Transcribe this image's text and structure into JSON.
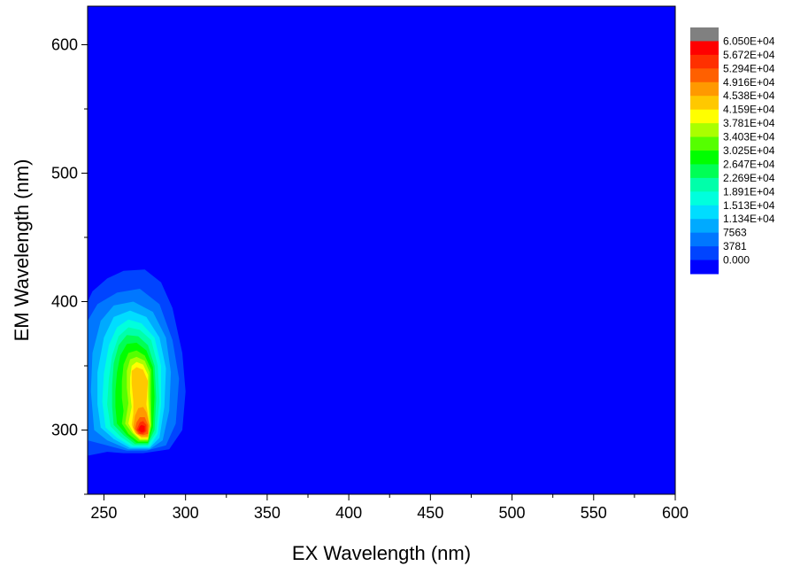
{
  "chart_data": {
    "type": "heatmap",
    "subtype": "filled-contour",
    "title": "",
    "xlabel": "EX Wavelength (nm)",
    "ylabel": "EM Wavelength (nm)",
    "xlim": [
      240,
      600
    ],
    "ylim": [
      250,
      630
    ],
    "x_ticks": [
      "250",
      "300",
      "350",
      "400",
      "450",
      "500",
      "550",
      "600"
    ],
    "y_ticks": [
      "300",
      "400",
      "500",
      "600"
    ],
    "grid": false,
    "background_color": "#0000ff",
    "legend_position": "right",
    "colorbar": {
      "levels": [
        "6.050E+04",
        "5.672E+04",
        "5.294E+04",
        "4.916E+04",
        "4.538E+04",
        "4.159E+04",
        "3.781E+04",
        "3.403E+04",
        "3.025E+04",
        "2.647E+04",
        "2.269E+04",
        "1.891E+04",
        "1.513E+04",
        "1.134E+04",
        "7563",
        "3781",
        "0.000"
      ],
      "colors": [
        "#808080",
        "#ff0000",
        "#ff3000",
        "#ff6000",
        "#ff9900",
        "#ffc800",
        "#ffff00",
        "#aaff00",
        "#55ff00",
        "#00ff00",
        "#00ff55",
        "#00ffaa",
        "#00ffdd",
        "#00ddff",
        "#00aaff",
        "#0077ff",
        "#0044ff",
        "#0000ff"
      ]
    },
    "peaks": [
      {
        "ex": 275,
        "em": 300,
        "value": 58000
      },
      {
        "ex": 273,
        "em": 345,
        "value": 47000
      }
    ],
    "contours": [
      {
        "level": "3781",
        "color": "#0044ff",
        "points": [
          [
            240,
            280
          ],
          [
            252,
            283
          ],
          [
            262,
            282
          ],
          [
            274,
            282
          ],
          [
            290,
            285
          ],
          [
            298,
            300
          ],
          [
            300,
            330
          ],
          [
            298,
            360
          ],
          [
            292,
            395
          ],
          [
            285,
            415
          ],
          [
            275,
            425
          ],
          [
            262,
            424
          ],
          [
            252,
            418
          ],
          [
            243,
            408
          ],
          [
            240,
            400
          ]
        ]
      },
      {
        "level": "7563",
        "color": "#0077ff",
        "points": [
          [
            240,
            292
          ],
          [
            252,
            288
          ],
          [
            264,
            284
          ],
          [
            276,
            284
          ],
          [
            288,
            288
          ],
          [
            294,
            305
          ],
          [
            296,
            340
          ],
          [
            292,
            370
          ],
          [
            284,
            398
          ],
          [
            272,
            410
          ],
          [
            258,
            407
          ],
          [
            246,
            398
          ],
          [
            240,
            385
          ]
        ]
      },
      {
        "level": "1.134E+04",
        "color": "#00aaff",
        "points": [
          [
            244,
            300
          ],
          [
            252,
            292
          ],
          [
            265,
            285
          ],
          [
            278,
            285
          ],
          [
            286,
            292
          ],
          [
            290,
            315
          ],
          [
            291,
            345
          ],
          [
            288,
            372
          ],
          [
            280,
            392
          ],
          [
            268,
            400
          ],
          [
            256,
            397
          ],
          [
            248,
            385
          ],
          [
            243,
            360
          ],
          [
            242,
            330
          ]
        ]
      },
      {
        "level": "1.513E+04",
        "color": "#00ddff",
        "points": [
          [
            248,
            302
          ],
          [
            256,
            293
          ],
          [
            266,
            286
          ],
          [
            278,
            286
          ],
          [
            284,
            294
          ],
          [
            287,
            318
          ],
          [
            288,
            348
          ],
          [
            284,
            372
          ],
          [
            276,
            388
          ],
          [
            266,
            393
          ],
          [
            256,
            388
          ],
          [
            250,
            372
          ],
          [
            246,
            345
          ],
          [
            246,
            320
          ]
        ]
      },
      {
        "level": "1.891E+04",
        "color": "#00ffdd",
        "points": [
          [
            251,
            302
          ],
          [
            258,
            294
          ],
          [
            267,
            287
          ],
          [
            278,
            287
          ],
          [
            283,
            297
          ],
          [
            285,
            320
          ],
          [
            285,
            350
          ],
          [
            281,
            372
          ],
          [
            273,
            383
          ],
          [
            265,
            386
          ],
          [
            258,
            380
          ],
          [
            253,
            366
          ],
          [
            250,
            344
          ],
          [
            249,
            322
          ]
        ]
      },
      {
        "level": "2.269E+04",
        "color": "#00ffaa",
        "points": [
          [
            254,
            303
          ],
          [
            260,
            295
          ],
          [
            268,
            288
          ],
          [
            277,
            288
          ],
          [
            282,
            298
          ],
          [
            284,
            322
          ],
          [
            283,
            350
          ],
          [
            279,
            370
          ],
          [
            272,
            378
          ],
          [
            265,
            380
          ],
          [
            259,
            373
          ],
          [
            255,
            358
          ],
          [
            253,
            340
          ],
          [
            252,
            320
          ]
        ]
      },
      {
        "level": "2.647E+04",
        "color": "#00ff55",
        "points": [
          [
            256,
            304
          ],
          [
            262,
            296
          ],
          [
            269,
            289
          ],
          [
            277,
            289
          ],
          [
            281,
            300
          ],
          [
            282,
            325
          ],
          [
            281,
            350
          ],
          [
            277,
            366
          ],
          [
            271,
            373
          ],
          [
            264,
            374
          ],
          [
            259,
            366
          ],
          [
            256,
            352
          ],
          [
            255,
            335
          ],
          [
            255,
            318
          ]
        ]
      },
      {
        "level": "3.025E+04",
        "color": "#00ff00",
        "points": [
          [
            258,
            305
          ],
          [
            264,
            296
          ],
          [
            270,
            290
          ],
          [
            277,
            290
          ],
          [
            280,
            302
          ],
          [
            281,
            326
          ],
          [
            280,
            349
          ],
          [
            276,
            362
          ],
          [
            270,
            368
          ],
          [
            264,
            367
          ],
          [
            260,
            358
          ],
          [
            258,
            345
          ],
          [
            257,
            330
          ],
          [
            257,
            318
          ]
        ]
      },
      {
        "level": "3.403E+04",
        "color": "#55ff00",
        "points": [
          [
            261,
            305
          ],
          [
            265,
            297
          ],
          [
            271,
            291
          ],
          [
            277,
            291
          ],
          [
            279,
            303
          ],
          [
            279,
            326
          ],
          [
            279,
            347
          ],
          [
            275,
            358
          ],
          [
            270,
            362
          ],
          [
            265,
            360
          ],
          [
            262,
            351
          ],
          [
            261,
            338
          ],
          [
            261,
            325
          ],
          [
            262,
            315
          ]
        ]
      },
      {
        "level": "3.781E+04",
        "color": "#aaff00",
        "points": [
          [
            263,
            305
          ],
          [
            267,
            298
          ],
          [
            272,
            292
          ],
          [
            277,
            292
          ],
          [
            279,
            304
          ],
          [
            278,
            326
          ],
          [
            278,
            345
          ],
          [
            275,
            354
          ],
          [
            270,
            357
          ],
          [
            266,
            355
          ],
          [
            264,
            346
          ],
          [
            264,
            333
          ],
          [
            265,
            321
          ]
        ]
      },
      {
        "level": "4.159E+04",
        "color": "#ffff00",
        "points": [
          [
            265,
            305
          ],
          [
            268,
            298
          ],
          [
            272,
            293
          ],
          [
            277,
            293
          ],
          [
            278,
            305
          ],
          [
            277,
            326
          ],
          [
            277,
            343
          ],
          [
            274,
            351
          ],
          [
            270,
            353
          ],
          [
            267,
            350
          ],
          [
            266,
            341
          ],
          [
            266,
            329
          ],
          [
            267,
            318
          ]
        ]
      },
      {
        "level": "4.538E+04",
        "color": "#ffc800",
        "points": [
          [
            267,
            304
          ],
          [
            269,
            298
          ],
          [
            273,
            294
          ],
          [
            277,
            294
          ],
          [
            278,
            304
          ],
          [
            276,
            320
          ],
          [
            277,
            338
          ],
          [
            274,
            347
          ],
          [
            270,
            349
          ],
          [
            267,
            346
          ],
          [
            267,
            336
          ],
          [
            268,
            322
          ],
          [
            268,
            313
          ]
        ]
      },
      {
        "level": "4.916E+04",
        "color": "#ff9900",
        "points": [
          [
            268,
            302
          ],
          [
            270,
            297
          ],
          [
            273,
            295
          ],
          [
            277,
            295
          ],
          [
            278,
            303
          ],
          [
            276,
            314
          ],
          [
            274,
            318
          ],
          [
            271,
            317
          ],
          [
            269,
            311
          ]
        ]
      },
      {
        "level": "5.294E+04",
        "color": "#ff6000",
        "points": [
          [
            269,
            301
          ],
          [
            271,
            297
          ],
          [
            274,
            296
          ],
          [
            277,
            297
          ],
          [
            277,
            304
          ],
          [
            275,
            310
          ],
          [
            272,
            310
          ],
          [
            270,
            306
          ]
        ]
      },
      {
        "level": "5.672E+04",
        "color": "#ff3000",
        "points": [
          [
            270,
            300
          ],
          [
            272,
            297
          ],
          [
            274,
            297
          ],
          [
            276,
            299
          ],
          [
            276,
            304
          ],
          [
            274,
            307
          ],
          [
            272,
            306
          ]
        ]
      },
      {
        "level": "6.050E+04",
        "color": "#ff0000",
        "points": [
          [
            271,
            300
          ],
          [
            273,
            298
          ],
          [
            275,
            299
          ],
          [
            275,
            303
          ],
          [
            273,
            304
          ],
          [
            272,
            303
          ]
        ]
      }
    ]
  }
}
